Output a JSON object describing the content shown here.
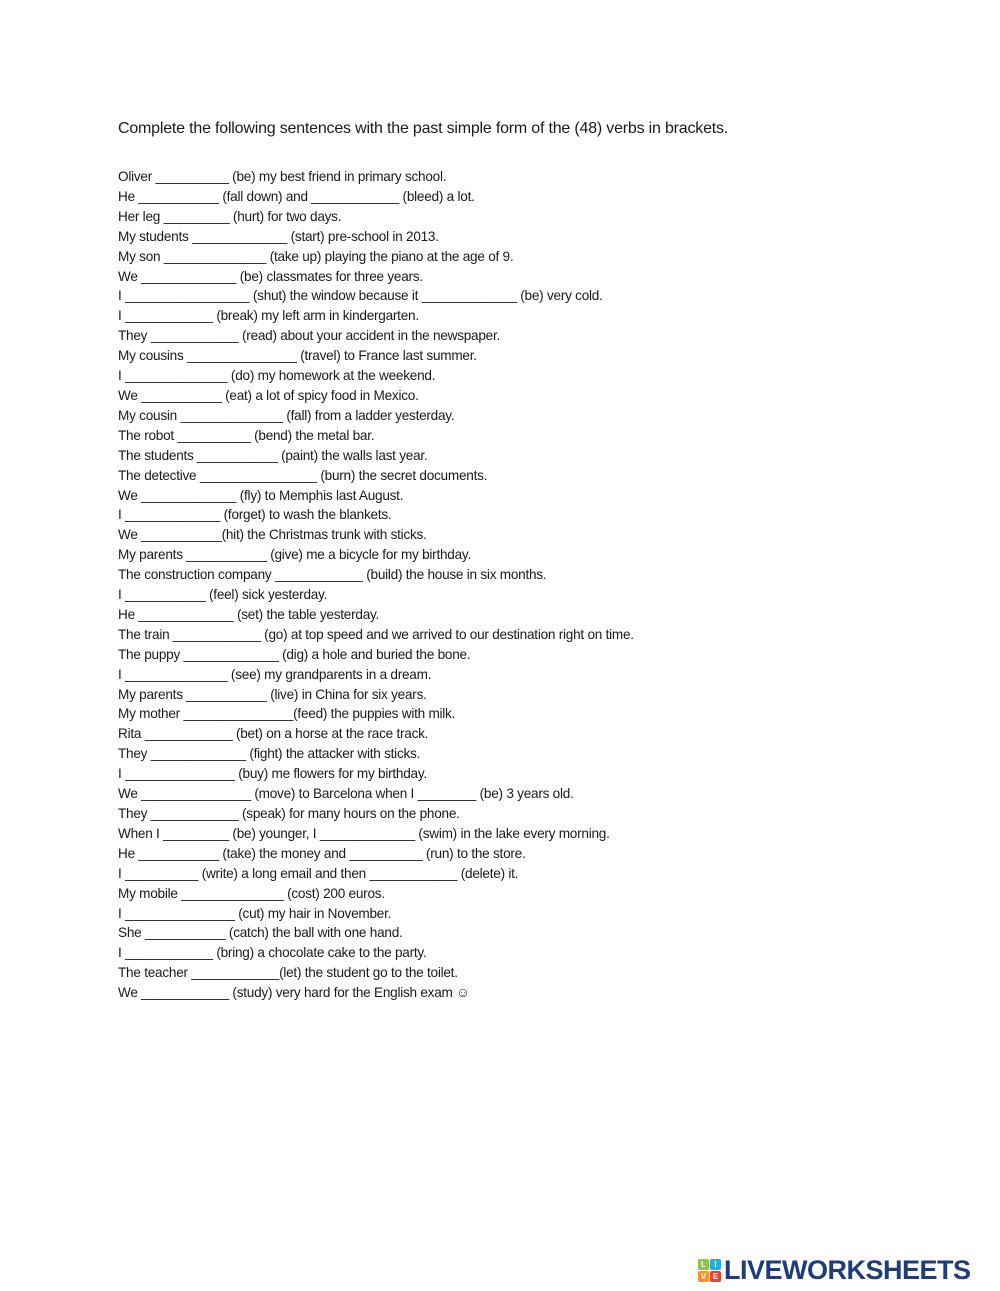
{
  "worksheet": {
    "instruction": "Complete the following sentences with the past simple form of the (48) verbs in brackets.",
    "lines": [
      [
        "Oliver ",
        "__________",
        " (be) my best friend in primary school."
      ],
      [
        "He ",
        "___________",
        " (fall down) and ",
        "____________",
        " (bleed) a lot."
      ],
      [
        "Her leg ",
        "_________",
        " (hurt) for two days."
      ],
      [
        "My students ",
        "_____________",
        " (start) pre-school in 2013."
      ],
      [
        "My son ",
        "______________",
        " (take up) playing the piano at the age of 9."
      ],
      [
        "We ",
        "_____________",
        " (be) classmates for three years."
      ],
      [
        "I ",
        "_________________",
        " (shut) the window because it ",
        "_____________",
        " (be) very cold."
      ],
      [
        "I ",
        "____________",
        " (break) my left arm in kindergarten."
      ],
      [
        "They ",
        "____________",
        " (read) about your accident in the newspaper."
      ],
      [
        "My cousins ",
        "_______________",
        " (travel) to France last summer."
      ],
      [
        "I ",
        "______________",
        " (do) my homework at the weekend."
      ],
      [
        "We ",
        "___________",
        " (eat) a lot of spicy food in Mexico."
      ],
      [
        "My cousin ",
        "______________",
        " (fall) from a ladder yesterday."
      ],
      [
        "The robot ",
        "__________",
        " (bend) the metal bar."
      ],
      [
        "The students ",
        "___________",
        " (paint) the walls last year."
      ],
      [
        "The detective ",
        "________________",
        " (burn) the secret documents."
      ],
      [
        "We ",
        "_____________",
        " (fly) to Memphis last August."
      ],
      [
        "I ",
        "_____________",
        " (forget) to wash the blankets."
      ],
      [
        "We ",
        "___________",
        "(hit) the Christmas trunk with sticks."
      ],
      [
        "My parents ",
        "___________",
        " (give) me a bicycle for my birthday."
      ],
      [
        "The construction company ",
        "____________",
        " (build) the house in six months."
      ],
      [
        "I ",
        "___________",
        " (feel) sick yesterday."
      ],
      [
        "He ",
        "_____________",
        " (set) the table yesterday."
      ],
      [
        "The train ",
        "____________",
        " (go) at top speed and we arrived to our destination right on time."
      ],
      [
        "The puppy ",
        "_____________",
        " (dig) a hole and buried the bone."
      ],
      [
        "I ",
        "______________",
        " (see) my grandparents in a dream."
      ],
      [
        "My parents ",
        "___________",
        " (live) in China for six years."
      ],
      [
        "My mother ",
        "_______________",
        "(feed) the puppies with milk."
      ],
      [
        "Rita ",
        "____________",
        " (bet) on a horse at the race track."
      ],
      [
        "They ",
        "_____________",
        " (fight) the attacker with sticks."
      ],
      [
        "I ",
        "_______________",
        " (buy) me flowers for my birthday."
      ],
      [
        "We ",
        "_______________",
        " (move) to Barcelona when I ",
        "________",
        " (be) 3 years old."
      ],
      [
        "They ",
        "____________",
        " (speak) for many hours on the phone."
      ],
      [
        "When I ",
        "_________",
        " (be) younger, I ",
        "_____________",
        " (swim) in the lake every morning."
      ],
      [
        "He ",
        "___________",
        " (take) the money and ",
        "__________",
        " (run) to the store."
      ],
      [
        "I ",
        "__________",
        " (write) a long email and then ",
        "____________",
        " (delete) it."
      ],
      [
        "My mobile ",
        "______________",
        " (cost) 200 euros."
      ],
      [
        "I ",
        "_______________",
        " (cut) my hair in November."
      ],
      [
        "She ",
        "___________",
        " (catch) the ball with one hand."
      ],
      [
        "I ",
        "____________",
        " (bring) a chocolate cake to the party."
      ],
      [
        "The teacher ",
        "____________",
        "(let) the student go to the toilet."
      ],
      [
        "We ",
        "____________",
        " (study) very hard for the English exam ☺"
      ]
    ]
  },
  "logo": {
    "text": "LIVEWORKSHEETS",
    "cube_letters": [
      "L",
      "I",
      "V",
      "E"
    ],
    "cube_colors": [
      "#8cc63f",
      "#29abe2",
      "#f7931e",
      "#e8412c"
    ],
    "text_color": "#1f3d7a"
  }
}
